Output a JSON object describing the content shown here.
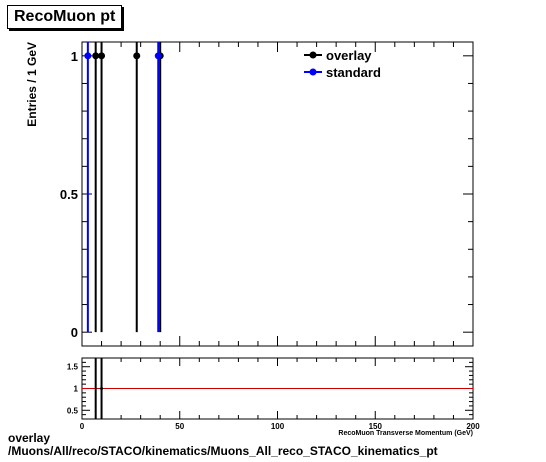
{
  "header": {
    "title": "RecoMuon pt"
  },
  "footer": {
    "line1": "overlay",
    "line2": "/Muons/All/reco/STACO/kinematics/Muons_All_reco_STACO_kinematics_pt"
  },
  "colors": {
    "overlay": "#000000",
    "standard": "#0000ff",
    "ratio_line": "#cc0000"
  },
  "chart_data": [
    {
      "type": "scatter",
      "ylabel": "Entries / 1 GeV",
      "xlim": [
        0,
        200
      ],
      "ylim": [
        -0.05,
        1.05
      ],
      "yticks": [
        {
          "value": 0,
          "label": "0"
        },
        {
          "value": 0.5,
          "label": "0.5"
        },
        {
          "value": 1,
          "label": "1"
        }
      ],
      "legend_position": "top-right",
      "series": [
        {
          "name": "overlay",
          "x": [
            7,
            10,
            28,
            40
          ],
          "y": [
            1,
            1,
            1,
            1
          ],
          "yerr": [
            1,
            1,
            1,
            1
          ]
        },
        {
          "name": "standard",
          "x": [
            3,
            39
          ],
          "y": [
            1,
            1
          ],
          "yerr": [
            1,
            1
          ]
        }
      ]
    },
    {
      "type": "line",
      "xlabel": "RecoMuon Transverse Momentum (GeV)",
      "xlim": [
        0,
        200
      ],
      "ylim": [
        0.3,
        1.7
      ],
      "yticks": [
        {
          "value": 0.5,
          "label": "0.5"
        },
        {
          "value": 1,
          "label": "1"
        },
        {
          "value": 1.5,
          "label": "1.5"
        }
      ],
      "xticks": [
        {
          "value": 0,
          "label": "0"
        },
        {
          "value": 50,
          "label": "50"
        },
        {
          "value": 100,
          "label": "100"
        },
        {
          "value": 150,
          "label": "150"
        },
        {
          "value": 200,
          "label": "200"
        }
      ],
      "reference_line": 1,
      "error_bars_x": [
        7,
        10
      ],
      "marker_x": 10
    }
  ]
}
